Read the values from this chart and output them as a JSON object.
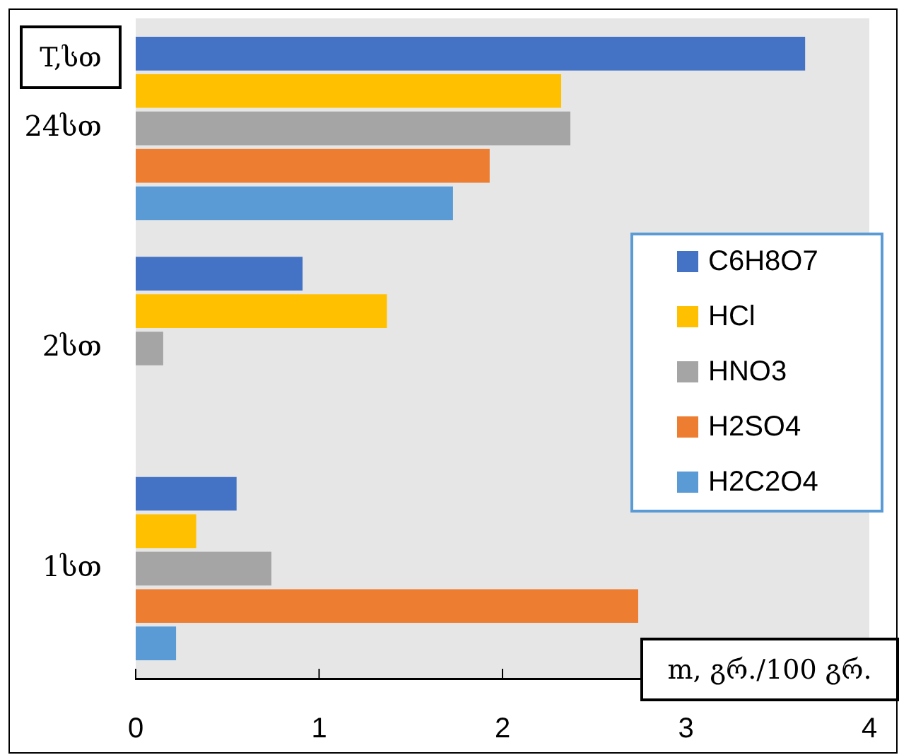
{
  "chart_data": {
    "type": "bar",
    "orientation": "horizontal",
    "xlabel": "m, გრ./100 გრ.",
    "ylabel": "T,სთ",
    "categories": [
      "24სთ",
      "2სთ",
      "1სთ"
    ],
    "series": [
      {
        "name": "C6H8O7",
        "color": "#4472c4",
        "values": [
          3.65,
          0.91,
          0.55
        ]
      },
      {
        "name": "HCl",
        "color": "#ffc000",
        "values": [
          2.32,
          1.37,
          0.33
        ]
      },
      {
        "name": "HNO3",
        "color": "#a5a5a5",
        "values": [
          2.37,
          0.15,
          0.74
        ]
      },
      {
        "name": "H2SO4",
        "color": "#ed7d31",
        "values": [
          1.93,
          null,
          2.74
        ]
      },
      {
        "name": "H2C2O4",
        "color": "#5b9bd5",
        "values": [
          1.73,
          null,
          0.22
        ]
      }
    ],
    "xlim": [
      0,
      4
    ],
    "xticks": [
      0,
      1,
      2,
      3,
      4
    ],
    "grid": false,
    "legend": "right"
  }
}
